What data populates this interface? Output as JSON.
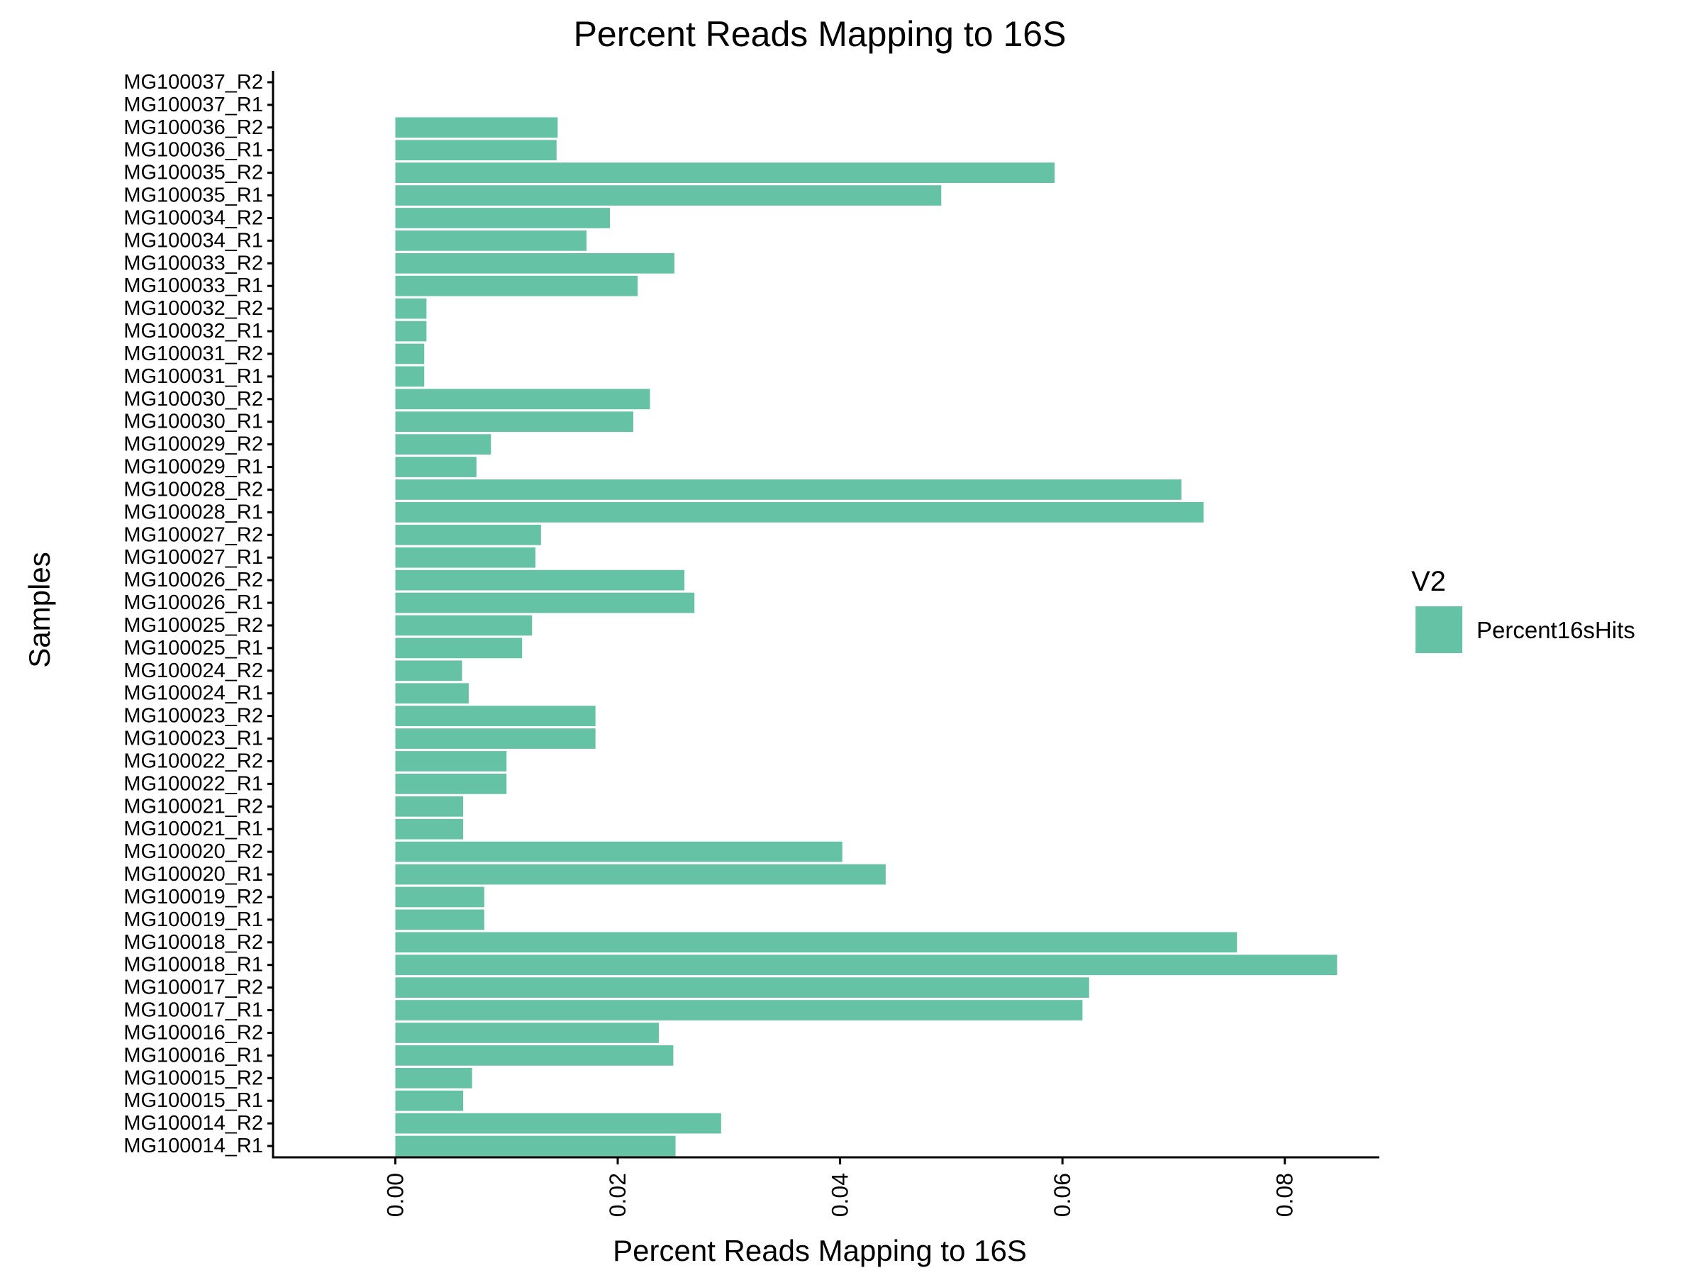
{
  "colors": {
    "bar": "#66c2a5",
    "axis": "#000000",
    "background": "#ffffff"
  },
  "chart_data": {
    "type": "bar",
    "orientation": "horizontal",
    "title": "Percent Reads Mapping to 16S",
    "xlabel": "Percent Reads Mapping to 16S",
    "ylabel": "Samples",
    "xlim": [
      -0.011,
      0.0885
    ],
    "x_ticks": [
      0.0,
      0.02,
      0.04,
      0.06,
      0.08
    ],
    "x_tick_labels": [
      "0.00",
      "0.02",
      "0.04",
      "0.06",
      "0.08"
    ],
    "grid": false,
    "legend": {
      "title": "V2",
      "position": "right",
      "entries": [
        "Percent16sHits"
      ]
    },
    "categories": [
      "MG100014_R1",
      "MG100014_R2",
      "MG100015_R1",
      "MG100015_R2",
      "MG100016_R1",
      "MG100016_R2",
      "MG100017_R1",
      "MG100017_R2",
      "MG100018_R1",
      "MG100018_R2",
      "MG100019_R1",
      "MG100019_R2",
      "MG100020_R1",
      "MG100020_R2",
      "MG100021_R1",
      "MG100021_R2",
      "MG100022_R1",
      "MG100022_R2",
      "MG100023_R1",
      "MG100023_R2",
      "MG100024_R1",
      "MG100024_R2",
      "MG100025_R1",
      "MG100025_R2",
      "MG100026_R1",
      "MG100026_R2",
      "MG100027_R1",
      "MG100027_R2",
      "MG100028_R1",
      "MG100028_R2",
      "MG100029_R1",
      "MG100029_R2",
      "MG100030_R1",
      "MG100030_R2",
      "MG100031_R1",
      "MG100031_R2",
      "MG100032_R1",
      "MG100032_R2",
      "MG100033_R1",
      "MG100033_R2",
      "MG100034_R1",
      "MG100034_R2",
      "MG100035_R1",
      "MG100035_R2",
      "MG100036_R1",
      "MG100036_R2",
      "MG100037_R1",
      "MG100037_R2"
    ],
    "series": [
      {
        "name": "Percent16sHits",
        "values": [
          0.0252,
          0.0293,
          0.0061,
          0.0069,
          0.025,
          0.0237,
          0.0618,
          0.0624,
          0.0847,
          0.0757,
          0.008,
          0.008,
          0.0441,
          0.0402,
          0.0061,
          0.0061,
          0.01,
          0.01,
          0.018,
          0.018,
          0.0066,
          0.006,
          0.0114,
          0.0123,
          0.0269,
          0.026,
          0.0126,
          0.0131,
          0.0727,
          0.0707,
          0.0073,
          0.0086,
          0.0214,
          0.0229,
          0.0026,
          0.0026,
          0.0028,
          0.0028,
          0.0218,
          0.0251,
          0.0172,
          0.0193,
          0.0491,
          0.0593,
          0.0145,
          0.0146,
          0.0,
          0.0
        ]
      }
    ]
  }
}
